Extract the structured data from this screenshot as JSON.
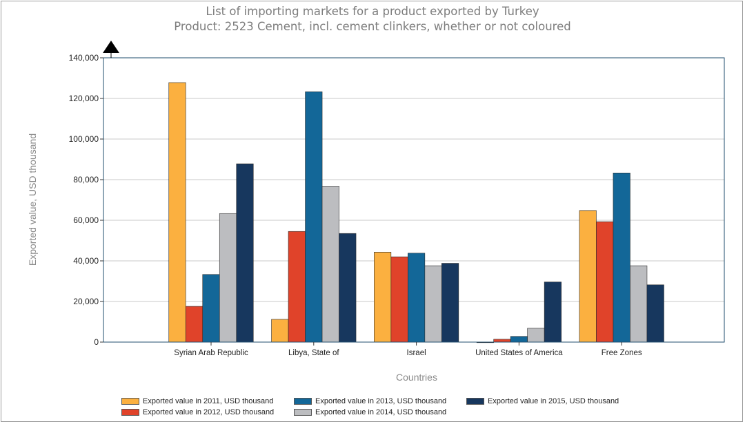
{
  "chart_data": {
    "type": "bar",
    "title": "List of importing markets for a product exported by Turkey",
    "subtitle": "Product: 2523 Cement, incl. cement clinkers, whether or not coloured",
    "xlabel": "Countries",
    "ylabel": "Exported value, USD thousand",
    "categories": [
      "Syrian Arab Republic",
      "Libya, State of",
      "Israel",
      "United States of America",
      "Free Zones"
    ],
    "ylim": [
      0,
      140000
    ],
    "yticks": [
      0,
      20000,
      40000,
      60000,
      80000,
      100000,
      120000,
      140000
    ],
    "ytick_labels": [
      "0",
      "20,000",
      "40,000",
      "60,000",
      "80,000",
      "100,000",
      "120,000",
      "140,000"
    ],
    "grid": true,
    "legend_position": "bottom",
    "series": [
      {
        "name": "Exported value in 2011, USD thousand",
        "color": "#FBB040",
        "values": [
          127800,
          11200,
          44300,
          0,
          64800
        ]
      },
      {
        "name": "Exported value in 2012, USD thousand",
        "color": "#E0432A",
        "values": [
          17600,
          54500,
          42000,
          1400,
          59300
        ]
      },
      {
        "name": "Exported value in 2013, USD thousand",
        "color": "#136798",
        "values": [
          33300,
          123300,
          43800,
          2800,
          83300
        ]
      },
      {
        "name": "Exported value in 2014, USD thousand",
        "color": "#BCBDC0",
        "values": [
          63300,
          76800,
          37600,
          6800,
          37600
        ]
      },
      {
        "name": "Exported value in 2015, USD thousand",
        "color": "#17375E",
        "values": [
          87800,
          53500,
          38800,
          29600,
          28200
        ]
      }
    ]
  }
}
